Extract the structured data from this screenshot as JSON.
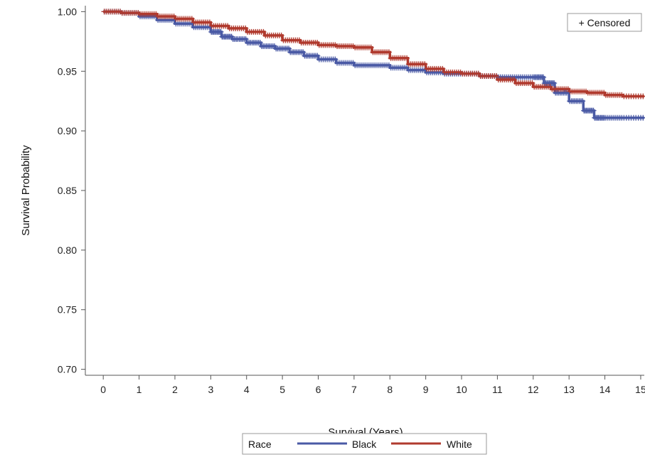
{
  "chart_data": {
    "type": "line",
    "xlabel": "Survival (Years)",
    "ylabel": "Survival Probability",
    "xlim": [
      -0.5,
      15.1
    ],
    "ylim": [
      0.695,
      1.005
    ],
    "xticks": [
      0,
      1,
      2,
      3,
      4,
      5,
      6,
      7,
      8,
      9,
      10,
      11,
      12,
      13,
      14,
      15
    ],
    "yticks": [
      "0.70",
      "0.75",
      "0.80",
      "0.85",
      "0.90",
      "0.95",
      "1.00"
    ],
    "grid": false,
    "inset_legend": {
      "text": "+ Censored",
      "position": "top-right"
    },
    "legend": {
      "title": "Race",
      "position": "bottom-center"
    },
    "series": [
      {
        "name": "Black",
        "color": "#4a5aa5",
        "x": [
          0,
          0.5,
          1,
          1.5,
          2,
          2.5,
          3,
          3.3,
          3.6,
          4,
          4.4,
          4.8,
          5.2,
          5.6,
          6,
          6.5,
          7,
          7.5,
          8,
          8.5,
          9,
          9.5,
          10,
          10.5,
          11,
          11.5,
          12,
          12.3,
          12.6,
          13,
          13.4,
          13.7,
          14,
          14.5,
          15.1
        ],
        "y": [
          1.0,
          0.999,
          0.996,
          0.993,
          0.99,
          0.987,
          0.983,
          0.979,
          0.977,
          0.974,
          0.971,
          0.969,
          0.966,
          0.963,
          0.96,
          0.957,
          0.955,
          0.955,
          0.953,
          0.951,
          0.949,
          0.948,
          0.948,
          0.946,
          0.945,
          0.945,
          0.945,
          0.94,
          0.932,
          0.925,
          0.917,
          0.911,
          0.911,
          0.911,
          0.911
        ]
      },
      {
        "name": "White",
        "color": "#b03a2e",
        "x": [
          0,
          0.5,
          1,
          1.5,
          2,
          2.5,
          3,
          3.5,
          4,
          4.5,
          5,
          5.5,
          6,
          6.5,
          7,
          7.5,
          8,
          8.5,
          9,
          9.5,
          10,
          10.5,
          11,
          11.5,
          12,
          12.5,
          13,
          13.5,
          14,
          14.5,
          15.1
        ],
        "y": [
          1.0,
          0.999,
          0.998,
          0.996,
          0.994,
          0.991,
          0.988,
          0.986,
          0.983,
          0.98,
          0.976,
          0.974,
          0.972,
          0.971,
          0.97,
          0.966,
          0.961,
          0.956,
          0.952,
          0.949,
          0.948,
          0.946,
          0.943,
          0.94,
          0.937,
          0.935,
          0.933,
          0.932,
          0.93,
          0.929,
          0.929
        ]
      }
    ]
  }
}
